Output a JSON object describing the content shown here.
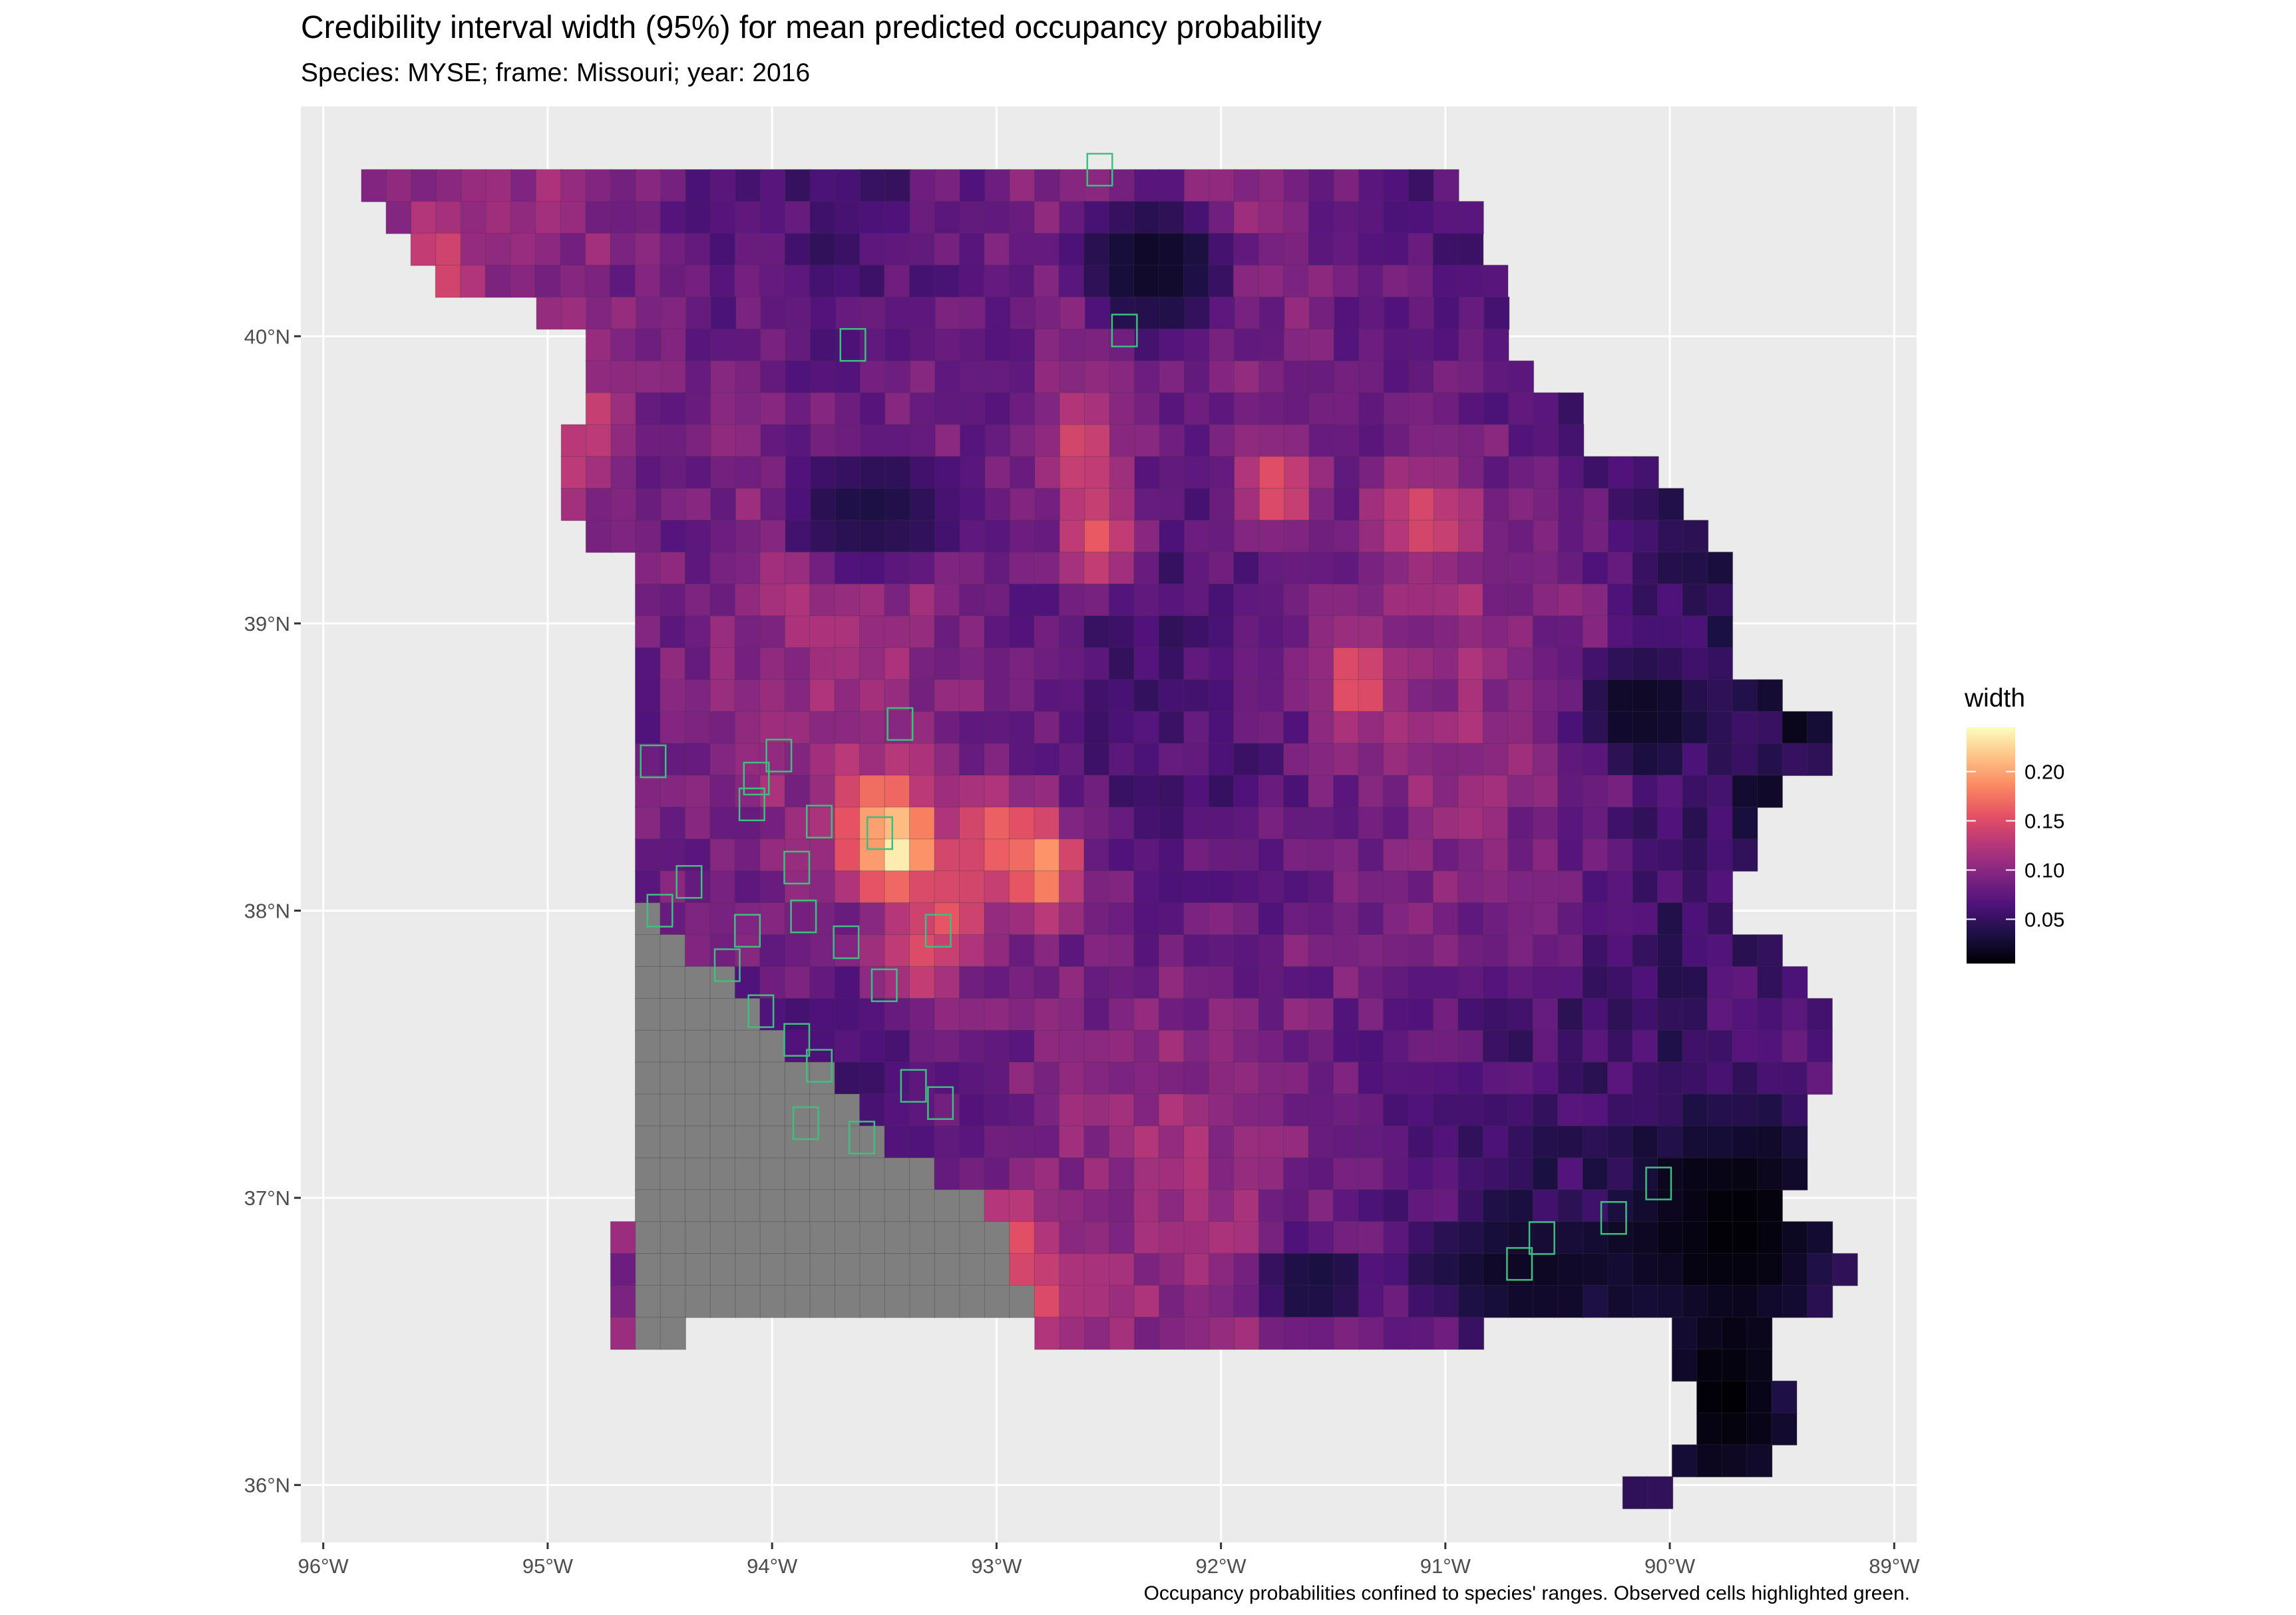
{
  "title": "Credibility interval width (95%) for mean predicted occupancy probability",
  "subtitle": "Species: MYSE; frame: Missouri; year: 2016",
  "caption": "Occupancy probabilities confined to species' ranges. Observed cells highlighted green.",
  "colors": {
    "panel_background": "#ebebeb",
    "grid": "#ffffff",
    "out_of_range_cell": "#7f7f7f",
    "observed_cell_outline": "#3fbf7f",
    "palette": "magma"
  },
  "chart_data": {
    "type": "heatmap",
    "xlim": [
      -96.1,
      -88.9
    ],
    "ylim": [
      35.8,
      40.8
    ],
    "x_ticks": [
      -96,
      -95,
      -94,
      -93,
      -92,
      -91,
      -90,
      -89
    ],
    "x_tick_labels": [
      "96°W",
      "95°W",
      "94°W",
      "93°W",
      "92°W",
      "91°W",
      "90°W",
      "89°W"
    ],
    "y_ticks": [
      36,
      37,
      38,
      39,
      40
    ],
    "y_tick_labels": [
      "36°N",
      "37°N",
      "38°N",
      "39°N",
      "40°N"
    ],
    "legend": {
      "title": "width",
      "position": "right",
      "breaks": [
        0.05,
        0.1,
        0.15,
        0.2
      ],
      "labels": [
        "0.05",
        "0.10",
        "0.15",
        "0.20"
      ],
      "range": [
        0.005,
        0.245
      ]
    },
    "grid_cell_deg": 0.1111,
    "row_spans": [
      {
        "lat": 40.525,
        "spans": [
          [
            -95.83,
            -90.98
          ]
        ]
      },
      {
        "lat": 40.414,
        "spans": [
          [
            -95.72,
            -90.87
          ]
        ]
      },
      {
        "lat": 40.303,
        "spans": [
          [
            -95.61,
            -90.87
          ]
        ]
      },
      {
        "lat": 40.192,
        "spans": [
          [
            -95.5,
            -90.76
          ]
        ]
      },
      {
        "lat": 40.081,
        "spans": [
          [
            -95.05,
            -90.76
          ]
        ]
      },
      {
        "lat": 39.97,
        "spans": [
          [
            -94.83,
            -90.76
          ]
        ]
      },
      {
        "lat": 39.859,
        "spans": [
          [
            -94.83,
            -90.65
          ]
        ]
      },
      {
        "lat": 39.748,
        "spans": [
          [
            -94.83,
            -90.43
          ]
        ]
      },
      {
        "lat": 39.637,
        "spans": [
          [
            -94.94,
            -90.43
          ]
        ]
      },
      {
        "lat": 39.526,
        "spans": [
          [
            -94.94,
            -90.1
          ]
        ]
      },
      {
        "lat": 39.415,
        "spans": [
          [
            -94.94,
            -89.99
          ]
        ]
      },
      {
        "lat": 39.304,
        "spans": [
          [
            -94.83,
            -89.88
          ]
        ]
      },
      {
        "lat": 39.193,
        "spans": [
          [
            -94.61,
            -89.77
          ]
        ]
      },
      {
        "lat": 39.082,
        "spans": [
          [
            -94.61,
            -89.77
          ]
        ]
      },
      {
        "lat": 38.971,
        "spans": [
          [
            -94.61,
            -89.77
          ]
        ]
      },
      {
        "lat": 38.86,
        "spans": [
          [
            -94.61,
            -89.77
          ]
        ]
      },
      {
        "lat": 38.749,
        "spans": [
          [
            -94.61,
            -89.55
          ]
        ]
      },
      {
        "lat": 38.638,
        "spans": [
          [
            -94.61,
            -89.33
          ]
        ]
      },
      {
        "lat": 38.527,
        "spans": [
          [
            -94.61,
            -89.33
          ]
        ]
      },
      {
        "lat": 38.416,
        "spans": [
          [
            -94.61,
            -89.55
          ]
        ]
      },
      {
        "lat": 38.305,
        "spans": [
          [
            -94.61,
            -89.66
          ]
        ]
      },
      {
        "lat": 38.194,
        "spans": [
          [
            -94.61,
            -89.66
          ]
        ]
      },
      {
        "lat": 38.083,
        "spans": [
          [
            -94.61,
            -89.77
          ]
        ]
      },
      {
        "lat": 37.972,
        "spans": [
          [
            -94.61,
            -89.77
          ]
        ]
      },
      {
        "lat": 37.861,
        "spans": [
          [
            -94.61,
            -89.55
          ]
        ]
      },
      {
        "lat": 37.75,
        "spans": [
          [
            -94.61,
            -89.44
          ]
        ]
      },
      {
        "lat": 37.639,
        "spans": [
          [
            -94.61,
            -89.33
          ]
        ]
      },
      {
        "lat": 37.528,
        "spans": [
          [
            -94.61,
            -89.33
          ]
        ]
      },
      {
        "lat": 37.417,
        "spans": [
          [
            -94.61,
            -89.33
          ]
        ]
      },
      {
        "lat": 37.306,
        "spans": [
          [
            -94.61,
            -89.44
          ]
        ]
      },
      {
        "lat": 37.195,
        "spans": [
          [
            -94.61,
            -89.44
          ]
        ]
      },
      {
        "lat": 37.084,
        "spans": [
          [
            -94.61,
            -89.44
          ]
        ]
      },
      {
        "lat": 36.973,
        "spans": [
          [
            -94.61,
            -89.55
          ]
        ]
      },
      {
        "lat": 36.862,
        "spans": [
          [
            -94.72,
            -89.33
          ]
        ]
      },
      {
        "lat": 36.751,
        "spans": [
          [
            -94.72,
            -89.22
          ]
        ]
      },
      {
        "lat": 36.64,
        "spans": [
          [
            -94.72,
            -89.33
          ]
        ]
      },
      {
        "lat": 36.529,
        "spans": [
          [
            -94.72,
            -94.39
          ],
          [
            -92.83,
            -90.87
          ],
          [
            -89.99,
            -89.55
          ]
        ]
      },
      {
        "lat": 36.418,
        "spans": [
          [
            -89.99,
            -89.55
          ]
        ]
      },
      {
        "lat": 36.307,
        "spans": [
          [
            -89.88,
            -89.44
          ]
        ]
      },
      {
        "lat": 36.196,
        "spans": [
          [
            -89.88,
            -89.44
          ]
        ]
      },
      {
        "lat": 36.085,
        "spans": [
          [
            -89.99,
            -89.55
          ]
        ]
      },
      {
        "lat": 35.974,
        "spans": [
          [
            -90.21,
            -89.99
          ]
        ]
      }
    ],
    "out_of_range_boundary": [
      [
        -94.62,
        38.03
      ],
      [
        -94.45,
        37.95
      ],
      [
        -94.1,
        37.67
      ],
      [
        -93.6,
        37.28
      ],
      [
        -93.05,
        36.98
      ],
      [
        -92.8,
        36.58
      ]
    ],
    "hotspots": [
      {
        "lon": -93.45,
        "lat": 38.22,
        "width": 0.24
      },
      {
        "lon": -93.5,
        "lat": 38.3,
        "width": 0.2
      },
      {
        "lon": -92.8,
        "lat": 38.15,
        "width": 0.2
      },
      {
        "lon": -93.0,
        "lat": 38.25,
        "width": 0.17
      },
      {
        "lon": -93.2,
        "lat": 38.0,
        "width": 0.16
      },
      {
        "lon": -93.35,
        "lat": 37.85,
        "width": 0.15
      },
      {
        "lon": -92.55,
        "lat": 39.3,
        "width": 0.16
      },
      {
        "lon": -92.62,
        "lat": 39.6,
        "width": 0.15
      },
      {
        "lon": -91.75,
        "lat": 39.47,
        "width": 0.16
      },
      {
        "lon": -91.1,
        "lat": 39.37,
        "width": 0.15
      },
      {
        "lon": -91.4,
        "lat": 38.8,
        "width": 0.16
      },
      {
        "lon": -92.95,
        "lat": 36.85,
        "width": 0.16
      },
      {
        "lon": -92.8,
        "lat": 36.65,
        "width": 0.15
      },
      {
        "lon": -95.5,
        "lat": 40.22,
        "width": 0.15
      },
      {
        "lon": -94.8,
        "lat": 39.7,
        "width": 0.14
      },
      {
        "lon": -94.9,
        "lat": 39.52,
        "width": 0.13
      }
    ],
    "low_regions": [
      {
        "lon": -92.3,
        "lat": 40.25,
        "rx": 0.45,
        "ry": 0.35,
        "width": 0.02
      },
      {
        "lon": -89.7,
        "lat": 36.9,
        "rx": 0.65,
        "ry": 0.55,
        "width": 0.006
      },
      {
        "lon": -89.75,
        "lat": 36.3,
        "rx": 0.4,
        "ry": 0.4,
        "width": 0.005
      },
      {
        "lon": -90.15,
        "lat": 38.7,
        "rx": 0.35,
        "ry": 0.25,
        "width": 0.02
      },
      {
        "lon": -90.6,
        "lat": 36.75,
        "rx": 0.7,
        "ry": 0.25,
        "width": 0.02
      },
      {
        "lon": -91.6,
        "lat": 36.7,
        "rx": 0.35,
        "ry": 0.2,
        "width": 0.03
      },
      {
        "lon": -93.55,
        "lat": 39.4,
        "rx": 0.55,
        "ry": 0.3,
        "width": 0.035
      }
    ],
    "observed_cells": [
      [
        -92.54,
        40.58
      ],
      [
        -92.43,
        40.02
      ],
      [
        -93.64,
        39.97
      ],
      [
        -93.43,
        38.65
      ],
      [
        -93.97,
        38.54
      ],
      [
        -94.53,
        38.52
      ],
      [
        -94.07,
        38.46
      ],
      [
        -94.09,
        38.37
      ],
      [
        -93.79,
        38.31
      ],
      [
        -93.52,
        38.27
      ],
      [
        -93.89,
        38.15
      ],
      [
        -94.37,
        38.1
      ],
      [
        -94.5,
        38.0
      ],
      [
        -93.86,
        37.98
      ],
      [
        -94.11,
        37.93
      ],
      [
        -93.67,
        37.89
      ],
      [
        -93.26,
        37.93
      ],
      [
        -94.2,
        37.81
      ],
      [
        -93.5,
        37.74
      ],
      [
        -94.05,
        37.65
      ],
      [
        -93.89,
        37.55
      ],
      [
        -93.79,
        37.46
      ],
      [
        -93.37,
        37.39
      ],
      [
        -93.25,
        37.33
      ],
      [
        -93.85,
        37.26
      ],
      [
        -93.6,
        37.21
      ],
      [
        -90.25,
        36.93
      ],
      [
        -90.05,
        37.05
      ],
      [
        -90.57,
        36.86
      ],
      [
        -90.67,
        36.77
      ]
    ]
  }
}
